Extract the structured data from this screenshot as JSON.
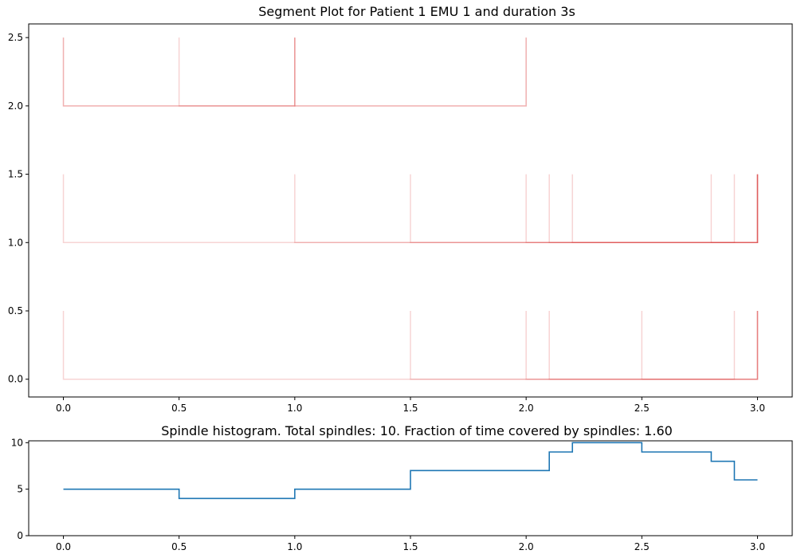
{
  "chart_data": [
    {
      "type": "segment",
      "title": "Segment Plot for Patient 1 EMU 1 and duration 3s",
      "xlabel": "",
      "ylabel": "",
      "xlim": [
        -0.15,
        3.15
      ],
      "ylim": [
        -0.13,
        2.6
      ],
      "xticks": [
        "0.0",
        "0.5",
        "1.0",
        "1.5",
        "2.0",
        "2.5",
        "3.0"
      ],
      "xtick_values": [
        0,
        0.5,
        1.0,
        1.5,
        2.0,
        2.5,
        3.0
      ],
      "yticks": [
        "0.0",
        "0.5",
        "1.0",
        "1.5",
        "2.0",
        "2.5"
      ],
      "ytick_values": [
        0,
        0.5,
        1.0,
        1.5,
        2.0,
        2.5
      ],
      "segment_color": "#d62728",
      "rows": [
        {
          "baseline": 0.0,
          "segments": [
            {
              "start": 0.0,
              "end": 3.0
            },
            {
              "start": 1.5,
              "end": 3.0
            },
            {
              "start": 2.0,
              "end": 3.0
            },
            {
              "start": 2.1,
              "end": 2.9
            },
            {
              "start": 2.5,
              "end": 3.0
            }
          ]
        },
        {
          "baseline": 1.0,
          "segments": [
            {
              "start": 0.0,
              "end": 3.0
            },
            {
              "start": 1.0,
              "end": 3.0
            },
            {
              "start": 1.5,
              "end": 3.0
            },
            {
              "start": 2.0,
              "end": 3.0
            },
            {
              "start": 2.1,
              "end": 2.9
            },
            {
              "start": 2.2,
              "end": 3.0
            },
            {
              "start": 2.8,
              "end": 3.0
            }
          ]
        },
        {
          "baseline": 2.0,
          "segments": [
            {
              "start": 0.0,
              "end": 2.0
            },
            {
              "start": 0.0,
              "end": 1.0
            },
            {
              "start": 0.5,
              "end": 1.0
            },
            {
              "start": 1.0,
              "end": 2.0
            }
          ]
        }
      ]
    },
    {
      "type": "line",
      "title": "Spindle histogram. Total spindles: 10. Fraction of time covered by spindles: 1.60",
      "xlabel": "",
      "ylabel": "",
      "xlim": [
        -0.15,
        3.15
      ],
      "ylim": [
        0,
        10.2
      ],
      "xticks": [
        "0.0",
        "0.5",
        "1.0",
        "1.5",
        "2.0",
        "2.5",
        "3.0"
      ],
      "xtick_values": [
        0,
        0.5,
        1.0,
        1.5,
        2.0,
        2.5,
        3.0
      ],
      "yticks": [
        "0",
        "5",
        "10"
      ],
      "ytick_values": [
        0,
        5,
        10
      ],
      "color": "#1f77b4",
      "step": "post",
      "x": [
        0.0,
        0.5,
        1.0,
        1.5,
        2.1,
        2.2,
        2.5,
        2.8,
        2.9,
        3.0
      ],
      "y": [
        5,
        4,
        5,
        7,
        9,
        10,
        9,
        8,
        6,
        6
      ]
    }
  ]
}
